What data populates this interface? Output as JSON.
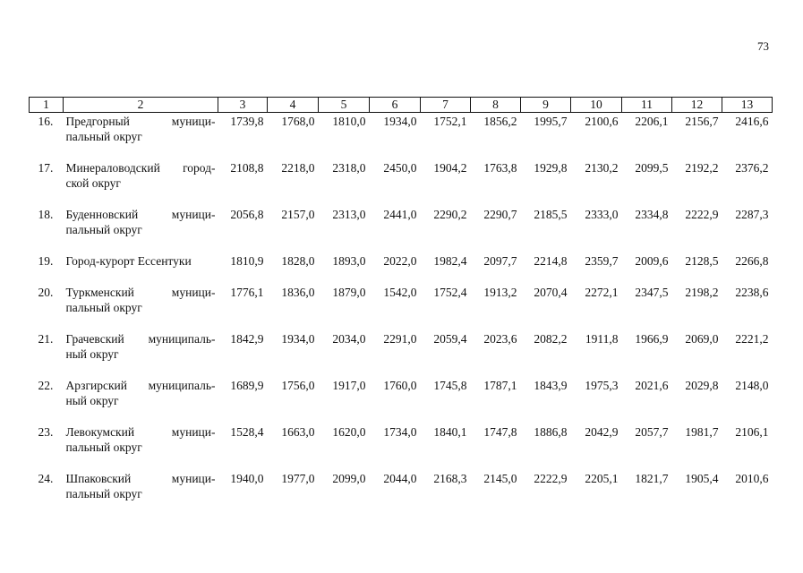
{
  "page_number": "73",
  "table": {
    "header": [
      "1",
      "2",
      "3",
      "4",
      "5",
      "6",
      "7",
      "8",
      "9",
      "10",
      "11",
      "12",
      "13"
    ],
    "rows": [
      {
        "num": "16.",
        "name": [
          "Предгорный муници-",
          "пальный округ"
        ],
        "values": [
          "1739,8",
          "1768,0",
          "1810,0",
          "1934,0",
          "1752,1",
          "1856,2",
          "1995,7",
          "2100,6",
          "2206,1",
          "2156,7",
          "2416,6"
        ]
      },
      {
        "num": "17.",
        "name": [
          "Минераловодский город-",
          "ской округ"
        ],
        "values": [
          "2108,8",
          "2218,0",
          "2318,0",
          "2450,0",
          "1904,2",
          "1763,8",
          "1929,8",
          "2130,2",
          "2099,5",
          "2192,2",
          "2376,2"
        ]
      },
      {
        "num": "18.",
        "name": [
          "Буденновский муници-",
          "пальный округ"
        ],
        "values": [
          "2056,8",
          "2157,0",
          "2313,0",
          "2441,0",
          "2290,2",
          "2290,7",
          "2185,5",
          "2333,0",
          "2334,8",
          "2222,9",
          "2287,3"
        ]
      },
      {
        "num": "19.",
        "name": [
          "Город-курорт Ессентуки"
        ],
        "values": [
          "1810,9",
          "1828,0",
          "1893,0",
          "2022,0",
          "1982,4",
          "2097,7",
          "2214,8",
          "2359,7",
          "2009,6",
          "2128,5",
          "2266,8"
        ]
      },
      {
        "num": "20.",
        "name": [
          "Туркменский муници-",
          "пальный округ"
        ],
        "values": [
          "1776,1",
          "1836,0",
          "1879,0",
          "1542,0",
          "1752,4",
          "1913,2",
          "2070,4",
          "2272,1",
          "2347,5",
          "2198,2",
          "2238,6"
        ]
      },
      {
        "num": "21.",
        "name": [
          "Грачевский муниципаль-",
          "ный округ"
        ],
        "values": [
          "1842,9",
          "1934,0",
          "2034,0",
          "2291,0",
          "2059,4",
          "2023,6",
          "2082,2",
          "1911,8",
          "1966,9",
          "2069,0",
          "2221,2"
        ]
      },
      {
        "num": "22.",
        "name": [
          "Арзгирский муниципаль-",
          "ный округ"
        ],
        "values": [
          "1689,9",
          "1756,0",
          "1917,0",
          "1760,0",
          "1745,8",
          "1787,1",
          "1843,9",
          "1975,3",
          "2021,6",
          "2029,8",
          "2148,0"
        ]
      },
      {
        "num": "23.",
        "name": [
          "Левокумский муници-",
          "пальный округ"
        ],
        "values": [
          "1528,4",
          "1663,0",
          "1620,0",
          "1734,0",
          "1840,1",
          "1747,8",
          "1886,8",
          "2042,9",
          "2057,7",
          "1981,7",
          "2106,1"
        ]
      },
      {
        "num": "24.",
        "name": [
          "Шпаковский муници-",
          "пальный округ"
        ],
        "values": [
          "1940,0",
          "1977,0",
          "2099,0",
          "2044,0",
          "2168,3",
          "2145,0",
          "2222,9",
          "2205,1",
          "1821,7",
          "1905,4",
          "2010,6"
        ]
      }
    ]
  }
}
